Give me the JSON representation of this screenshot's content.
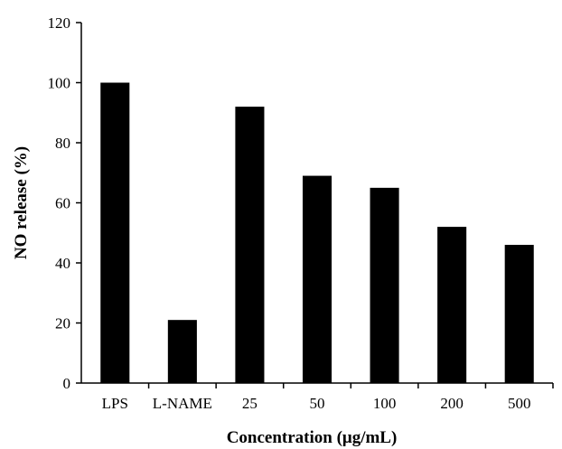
{
  "chart_data": {
    "type": "bar",
    "title": "",
    "xlabel": "Concentration (μg/mL)",
    "ylabel": "NO release (%)",
    "categories": [
      "LPS",
      "L-NAME",
      "25",
      "50",
      "100",
      "200",
      "500"
    ],
    "values": [
      100,
      21,
      92,
      69,
      65,
      52,
      46
    ],
    "ylim": [
      0,
      120
    ],
    "yticks": [
      "0",
      "20",
      "40",
      "60",
      "80",
      "100",
      "120"
    ],
    "grid": false,
    "legend": "none",
    "bar_color": "#000000"
  }
}
